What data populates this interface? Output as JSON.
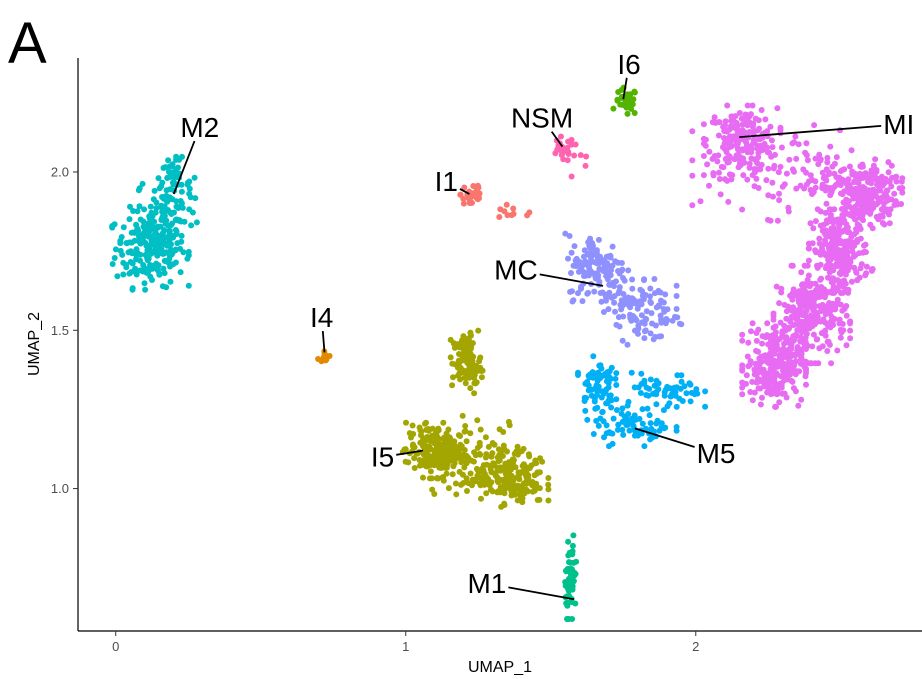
{
  "panel_letter": "A",
  "chart_data": {
    "type": "scatter",
    "xlabel": "UMAP_1",
    "ylabel": "UMAP_2",
    "xlim": [
      -0.13,
      2.78
    ],
    "ylim": [
      0.55,
      2.36
    ],
    "x_ticks": [
      0,
      1,
      2
    ],
    "x_tick_labels": [
      "0",
      "1",
      "2"
    ],
    "y_ticks": [
      1.0,
      1.5,
      2.0
    ],
    "y_tick_labels": [
      "1.0",
      "1.5",
      "2.0"
    ],
    "grid": false,
    "legend": "none",
    "clusters": [
      {
        "label": "M2",
        "color": "#00bfc4",
        "n": 330,
        "blobs": [
          [
            0.12,
            1.76,
            0.06,
            0.06,
            0.6
          ],
          [
            0.17,
            1.86,
            0.05,
            0.07,
            0.25
          ],
          [
            0.2,
            1.96,
            0.03,
            0.04,
            0.15
          ]
        ],
        "label_pos": [
          0.29,
          2.14
        ],
        "anchor": [
          0.2,
          1.93
        ]
      },
      {
        "label": "I1",
        "color": "#f8766d",
        "n": 40,
        "blobs": [
          [
            1.23,
            1.93,
            0.02,
            0.025,
            0.75
          ],
          [
            1.37,
            1.87,
            0.05,
            0.012,
            0.25
          ]
        ],
        "label_pos": [
          1.14,
          1.97
        ],
        "anchor": [
          1.22,
          1.93
        ]
      },
      {
        "label": "NSM",
        "color": "#ff64b0",
        "n": 30,
        "blobs": [
          [
            1.54,
            2.07,
            0.02,
            0.02,
            0.8
          ],
          [
            1.6,
            2.03,
            0.03,
            0.03,
            0.2
          ]
        ],
        "label_pos": [
          1.47,
          2.17
        ],
        "anchor": [
          1.54,
          2.08
        ]
      },
      {
        "label": "I6",
        "color": "#53b400",
        "n": 30,
        "blobs": [
          [
            1.76,
            2.22,
            0.02,
            0.022,
            1.0
          ]
        ],
        "label_pos": [
          1.77,
          2.34
        ],
        "anchor": [
          1.75,
          2.23
        ]
      },
      {
        "label": "MI",
        "color": "#e76bf3",
        "n": 1300,
        "blobs": [
          [
            2.16,
            2.1,
            0.06,
            0.05,
            0.15
          ],
          [
            2.58,
            1.93,
            0.06,
            0.05,
            0.17
          ],
          [
            2.5,
            1.75,
            0.05,
            0.06,
            0.18
          ],
          [
            2.4,
            1.55,
            0.06,
            0.07,
            0.2
          ],
          [
            2.27,
            1.39,
            0.05,
            0.06,
            0.2
          ],
          [
            2.34,
            2.0,
            0.16,
            0.07,
            0.1
          ]
        ],
        "label_pos": [
          2.7,
          2.15
        ],
        "anchor": [
          2.15,
          2.11
        ]
      },
      {
        "label": "MC",
        "color": "#8f91ff",
        "n": 240,
        "blobs": [
          [
            1.66,
            1.7,
            0.05,
            0.05,
            0.5
          ],
          [
            1.78,
            1.6,
            0.07,
            0.04,
            0.35
          ],
          [
            1.84,
            1.52,
            0.05,
            0.03,
            0.15
          ]
        ],
        "label_pos": [
          1.38,
          1.69
        ],
        "anchor": [
          1.68,
          1.64
        ]
      },
      {
        "label": "I4",
        "color": "#e18a00",
        "n": 12,
        "blobs": [
          [
            0.72,
            1.42,
            0.01,
            0.008,
            1.0
          ]
        ],
        "label_pos": [
          0.71,
          1.54
        ],
        "anchor": [
          0.72,
          1.43
        ]
      },
      {
        "label": "I5",
        "color": "#a3a500",
        "n": 560,
        "blobs": [
          [
            1.21,
            1.4,
            0.025,
            0.045,
            0.18
          ],
          [
            1.1,
            1.12,
            0.05,
            0.04,
            0.32
          ],
          [
            1.36,
            1.03,
            0.06,
            0.04,
            0.3
          ],
          [
            1.25,
            1.1,
            0.1,
            0.06,
            0.2
          ]
        ],
        "label_pos": [
          0.92,
          1.1
        ],
        "anchor": [
          1.06,
          1.12
        ]
      },
      {
        "label": "M5",
        "color": "#00b0f6",
        "n": 200,
        "blobs": [
          [
            1.66,
            1.33,
            0.03,
            0.04,
            0.35
          ],
          [
            1.78,
            1.2,
            0.07,
            0.03,
            0.35
          ],
          [
            1.9,
            1.3,
            0.06,
            0.03,
            0.3
          ]
        ],
        "label_pos": [
          2.07,
          1.11
        ],
        "anchor": [
          1.79,
          1.19
        ]
      },
      {
        "label": "M1",
        "color": "#00c08b",
        "n": 60,
        "blobs": [
          [
            1.57,
            0.72,
            0.01,
            0.06,
            1.0
          ]
        ],
        "label_pos": [
          1.28,
          0.7
        ],
        "anchor": [
          1.58,
          0.65
        ]
      }
    ]
  }
}
